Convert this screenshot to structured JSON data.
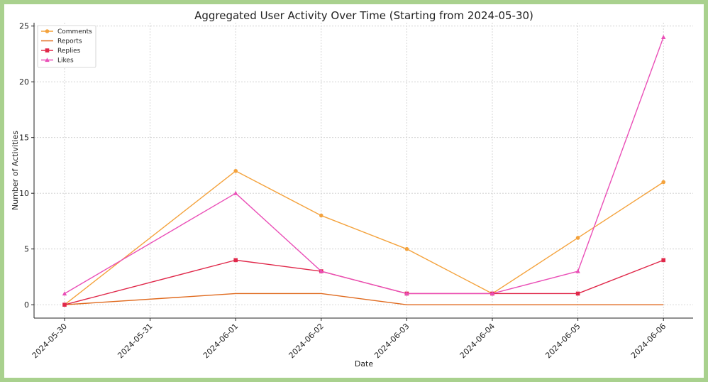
{
  "chart_data": {
    "type": "line",
    "title": "Aggregated User Activity Over Time (Starting from 2024-05-30)",
    "xlabel": "Date",
    "ylabel": "Number of Activities",
    "categories": [
      "2024-05-30",
      "2024-05-31",
      "2024-06-01",
      "2024-06-02",
      "2024-06-03",
      "2024-06-04",
      "2024-06-05",
      "2024-06-06"
    ],
    "ylim": [
      -1.2,
      25.3
    ],
    "yticks": [
      0,
      5,
      10,
      15,
      20,
      25
    ],
    "grid": true,
    "legend_position": "top-left",
    "series": [
      {
        "name": "Comments",
        "color": "#f4a23c",
        "marker": "circle",
        "x": [
          "2024-05-30",
          "2024-06-01",
          "2024-06-02",
          "2024-06-03",
          "2024-06-04",
          "2024-06-05",
          "2024-06-06"
        ],
        "values": [
          0,
          12,
          8,
          5,
          1,
          6,
          11
        ]
      },
      {
        "name": "Reports",
        "color": "#e06a1e",
        "marker": "none",
        "x": [
          "2024-05-30",
          "2024-06-01",
          "2024-06-02",
          "2024-06-03",
          "2024-06-04",
          "2024-06-05",
          "2024-06-06"
        ],
        "values": [
          0,
          1,
          1,
          0,
          0,
          0,
          0
        ]
      },
      {
        "name": "Replies",
        "color": "#e0284a",
        "marker": "square",
        "x": [
          "2024-05-30",
          "2024-06-01",
          "2024-06-02",
          "2024-06-03",
          "2024-06-04",
          "2024-06-05",
          "2024-06-06"
        ],
        "values": [
          0,
          4,
          3,
          1,
          1,
          1,
          4
        ]
      },
      {
        "name": "Likes",
        "color": "#ea4fb7",
        "marker": "triangle",
        "x": [
          "2024-05-30",
          "2024-06-01",
          "2024-06-02",
          "2024-06-03",
          "2024-06-04",
          "2024-06-05",
          "2024-06-06"
        ],
        "values": [
          1,
          10,
          3,
          1,
          1,
          3,
          24
        ]
      }
    ]
  }
}
